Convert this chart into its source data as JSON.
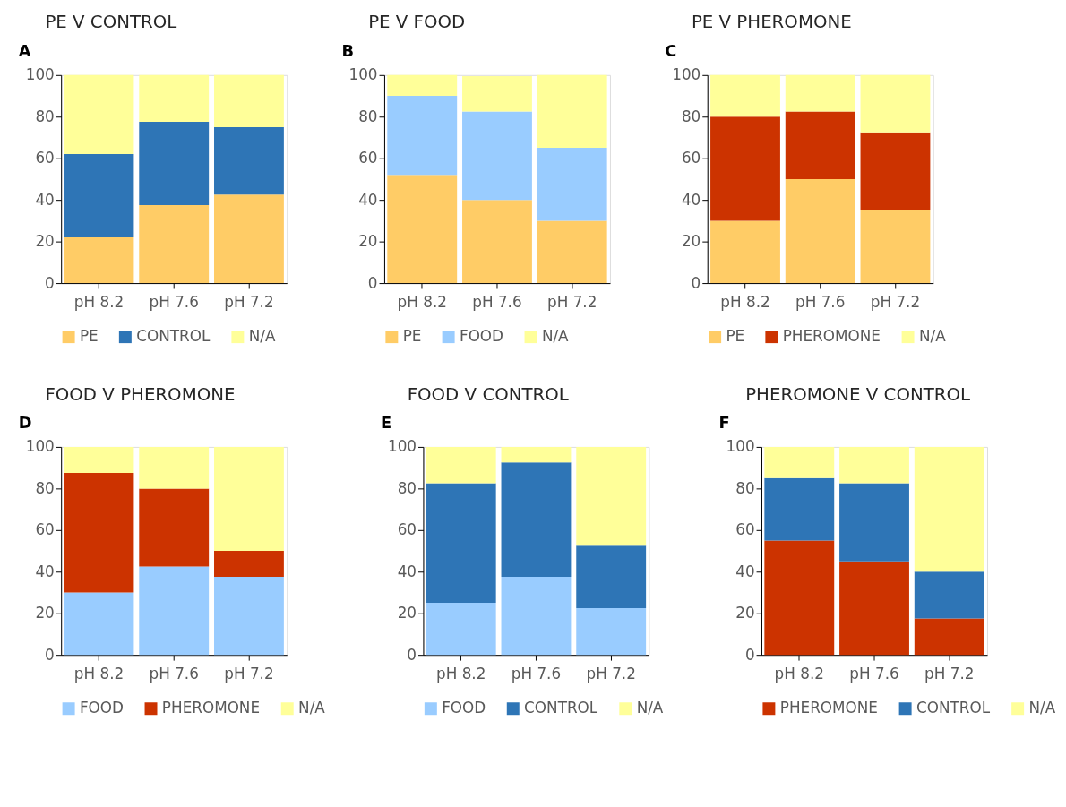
{
  "chart_data": [
    {
      "type": "bar",
      "title": "PE V CONTROL",
      "annotations": [
        "A"
      ],
      "stacked": true,
      "categories": [
        "pH 8.2",
        "pH 7.6",
        "pH 7.2"
      ],
      "ylim": [
        0,
        100
      ],
      "yticks": [
        0,
        20,
        40,
        60,
        80,
        100
      ],
      "grid": false,
      "legend": "bottom",
      "series": [
        {
          "name": "PE",
          "color": "#ffcc66",
          "values": [
            22,
            37.5,
            42.5
          ]
        },
        {
          "name": "CONTROL",
          "color": "#2e75b6",
          "values": [
            40,
            40,
            32.5
          ]
        },
        {
          "name": "N/A",
          "color": "#ffff99",
          "values": [
            38,
            22.5,
            25
          ]
        }
      ]
    },
    {
      "type": "bar",
      "title": "PE V FOOD",
      "annotations": [
        "B"
      ],
      "stacked": true,
      "categories": [
        "pH 8.2",
        "pH 7.6",
        "pH 7.2"
      ],
      "ylim": [
        0,
        100
      ],
      "yticks": [
        0,
        20,
        40,
        60,
        80,
        100
      ],
      "grid": false,
      "legend": "bottom",
      "series": [
        {
          "name": "PE",
          "color": "#ffcc66",
          "values": [
            52,
            40,
            30
          ]
        },
        {
          "name": "FOOD",
          "color": "#99ccff",
          "values": [
            38,
            42.5,
            35
          ]
        },
        {
          "name": "N/A",
          "color": "#ffff99",
          "values": [
            10,
            17,
            35
          ]
        }
      ]
    },
    {
      "type": "bar",
      "title": "PE V PHEROMONE",
      "annotations": [
        "C"
      ],
      "stacked": true,
      "categories": [
        "pH 8.2",
        "pH 7.6",
        "pH 7.2"
      ],
      "ylim": [
        0,
        100
      ],
      "yticks": [
        0,
        20,
        40,
        60,
        80,
        100
      ],
      "grid": false,
      "legend": "bottom",
      "series": [
        {
          "name": "PE",
          "color": "#ffcc66",
          "values": [
            30,
            50,
            35
          ]
        },
        {
          "name": "PHEROMONE",
          "color": "#cc3300",
          "values": [
            50,
            32.5,
            37.5
          ]
        },
        {
          "name": "N/A",
          "color": "#ffff99",
          "values": [
            20,
            17.5,
            27.5
          ]
        }
      ]
    },
    {
      "type": "bar",
      "title": "FOOD V PHEROMONE",
      "annotations": [
        "D"
      ],
      "stacked": true,
      "categories": [
        "pH 8.2",
        "pH 7.6",
        "pH 7.2"
      ],
      "ylim": [
        0,
        100
      ],
      "yticks": [
        0,
        20,
        40,
        60,
        80,
        100
      ],
      "grid": false,
      "legend": "bottom",
      "series": [
        {
          "name": "FOOD",
          "color": "#99ccff",
          "values": [
            30,
            42.5,
            37.5
          ]
        },
        {
          "name": "PHEROMONE",
          "color": "#cc3300",
          "values": [
            57.5,
            37.5,
            12.5
          ]
        },
        {
          "name": "N/A",
          "color": "#ffff99",
          "values": [
            12.5,
            20,
            50
          ]
        }
      ]
    },
    {
      "type": "bar",
      "title": "FOOD V CONTROL",
      "annotations": [
        "E"
      ],
      "stacked": true,
      "categories": [
        "pH 8.2",
        "pH 7.6",
        "pH 7.2"
      ],
      "ylim": [
        0,
        100
      ],
      "yticks": [
        0,
        20,
        40,
        60,
        80,
        100
      ],
      "grid": false,
      "legend": "bottom",
      "series": [
        {
          "name": "FOOD",
          "color": "#99ccff",
          "values": [
            25,
            37.5,
            22.5
          ]
        },
        {
          "name": "CONTROL",
          "color": "#2e75b6",
          "values": [
            57.5,
            55,
            30
          ]
        },
        {
          "name": "N/A",
          "color": "#ffff99",
          "values": [
            17.5,
            7.5,
            47.5
          ]
        }
      ]
    },
    {
      "type": "bar",
      "title": "PHEROMONE V CONTROL",
      "annotations": [
        "F"
      ],
      "stacked": true,
      "categories": [
        "pH 8.2",
        "pH 7.6",
        "pH 7.2"
      ],
      "ylim": [
        0,
        100
      ],
      "yticks": [
        0,
        20,
        40,
        60,
        80,
        100
      ],
      "grid": false,
      "legend": "bottom",
      "series": [
        {
          "name": "PHEROMONE",
          "color": "#cc3300",
          "values": [
            55,
            45,
            17.5
          ]
        },
        {
          "name": "CONTROL",
          "color": "#2e75b6",
          "values": [
            30,
            37.5,
            22.5
          ]
        },
        {
          "name": "N/A",
          "color": "#ffff99",
          "values": [
            15,
            17.5,
            60
          ]
        }
      ]
    }
  ]
}
